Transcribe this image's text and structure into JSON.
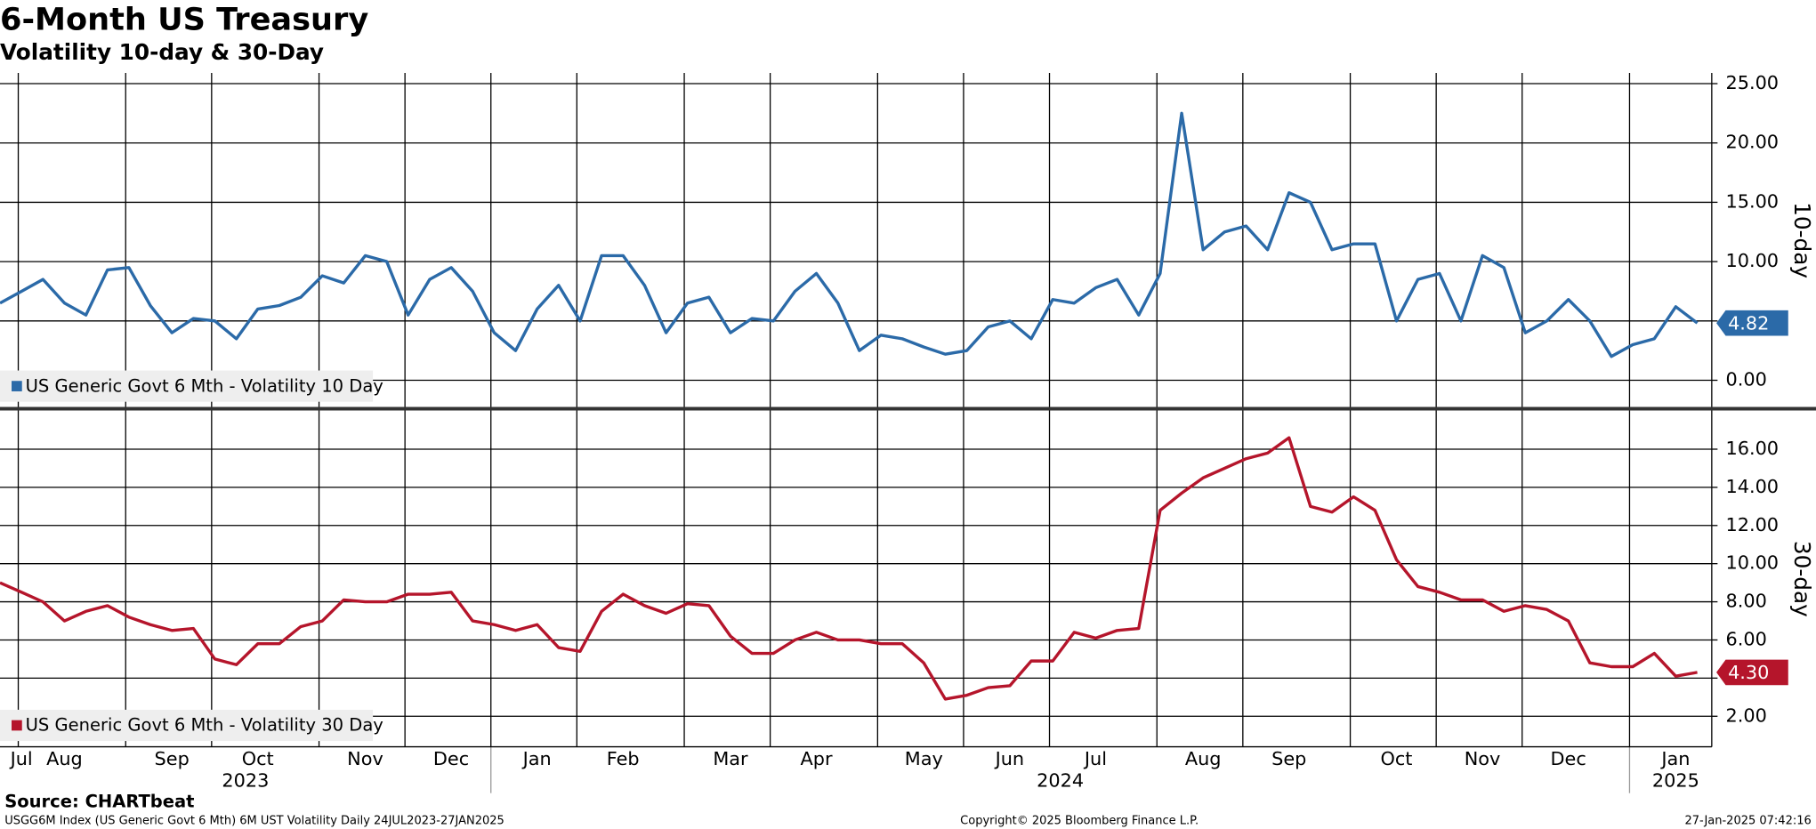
{
  "title": "6-Month US Treasury",
  "subtitle": "Volatility 10-day & 30-Day",
  "source": "Source: CHARTbeat",
  "footer_left": "USGG6M Index (US Generic Govt 6 Mth) 6M UST Volatility  Daily 24JUL2023-27JAN2025",
  "footer_center": "Copyright© 2025 Bloomberg Finance L.P.",
  "footer_right": "27-Jan-2025 07:42:16",
  "x_axis": {
    "categories": [
      null,
      "Jul",
      null,
      "Aug",
      null,
      null,
      null,
      null,
      "Sep",
      null,
      null,
      null,
      "Oct",
      null,
      null,
      null,
      null,
      "Nov",
      null,
      null,
      null,
      "Dec",
      null,
      null,
      null,
      "Jan",
      null,
      null,
      null,
      "Feb",
      null,
      null,
      null,
      null,
      "Mar",
      null,
      null,
      null,
      "Apr",
      null,
      null,
      null,
      null,
      "May",
      null,
      null,
      null,
      "Jun",
      null,
      null,
      null,
      "Jul",
      null,
      null,
      null,
      null,
      "Aug",
      null,
      null,
      null,
      "Sep",
      null,
      null,
      null,
      null,
      "Oct",
      null,
      null,
      null,
      "Nov",
      null,
      null,
      null,
      "Dec",
      null,
      null,
      null,
      null,
      "Jan",
      null
    ],
    "years": [
      "2023",
      "2024",
      "2025"
    ]
  },
  "chart_data": [
    {
      "type": "line",
      "ylabel": "10-day",
      "ylim": [
        -2.3,
        25.9
      ],
      "yticks": [
        {
          "value": 0,
          "label": "0.00"
        },
        {
          "value": 5,
          "label": "5.00"
        },
        {
          "value": 10,
          "label": "10.00"
        },
        {
          "value": 15,
          "label": "15.00"
        },
        {
          "value": 20,
          "label": "20.00"
        },
        {
          "value": 25,
          "label": "25.00"
        }
      ],
      "grid": true,
      "series": [
        {
          "name": "US Generic Govt 6 Mth - Volatility 10 Day",
          "color": "#2b6aa8",
          "last_value_label": "4.82",
          "values": [
            6.5,
            7.5,
            8.5,
            6.5,
            5.5,
            9.3,
            9.5,
            6.3,
            4.0,
            5.2,
            5.0,
            3.5,
            6.0,
            6.3,
            7.0,
            8.8,
            8.2,
            10.5,
            10.0,
            5.5,
            8.5,
            9.5,
            7.5,
            4.0,
            2.5,
            6.0,
            8.0,
            5.0,
            10.5,
            10.5,
            8.0,
            4.0,
            6.5,
            7.0,
            4.0,
            5.2,
            5.0,
            7.5,
            9.0,
            6.5,
            2.5,
            3.8,
            3.5,
            2.8,
            2.2,
            2.5,
            4.5,
            5.0,
            3.5,
            6.8,
            6.5,
            7.8,
            8.5,
            5.5,
            9.0,
            22.5,
            11.0,
            12.5,
            13.0,
            11.0,
            15.8,
            15.0,
            11.0,
            11.5,
            11.5,
            5.0,
            8.5,
            9.0,
            5.0,
            10.5,
            9.5,
            4.0,
            5.0,
            6.8,
            5.0,
            2.0,
            3.0,
            3.5,
            6.2,
            4.82
          ]
        }
      ]
    },
    {
      "type": "line",
      "ylabel": "30-day",
      "ylim": [
        0.4,
        18
      ],
      "yticks": [
        {
          "value": 2,
          "label": "2.00"
        },
        {
          "value": 4,
          "label": "4.00"
        },
        {
          "value": 6,
          "label": "6.00"
        },
        {
          "value": 8,
          "label": "8.00"
        },
        {
          "value": 10,
          "label": "10.00"
        },
        {
          "value": 12,
          "label": "12.00"
        },
        {
          "value": 14,
          "label": "14.00"
        },
        {
          "value": 16,
          "label": "16.00"
        }
      ],
      "grid": true,
      "series": [
        {
          "name": "US Generic Govt 6 Mth - Volatility 30 Day",
          "color": "#b5152b",
          "last_value_label": "4.30",
          "values": [
            9.0,
            8.5,
            8.0,
            7.0,
            7.5,
            7.8,
            7.2,
            6.8,
            6.5,
            6.6,
            5.0,
            4.7,
            5.8,
            5.8,
            6.7,
            7.0,
            8.1,
            8.0,
            8.0,
            8.4,
            8.4,
            8.5,
            7.0,
            6.8,
            6.5,
            6.8,
            5.6,
            5.4,
            7.5,
            8.4,
            7.8,
            7.4,
            7.9,
            7.8,
            6.2,
            5.3,
            5.3,
            6.0,
            6.4,
            6.0,
            6.0,
            5.8,
            5.8,
            4.8,
            2.9,
            3.1,
            3.5,
            3.6,
            4.9,
            4.9,
            6.4,
            6.1,
            6.5,
            6.6,
            12.8,
            13.7,
            14.5,
            15.0,
            15.5,
            15.8,
            16.6,
            13.0,
            12.7,
            13.5,
            12.8,
            10.2,
            8.8,
            8.5,
            8.1,
            8.1,
            7.5,
            7.8,
            7.6,
            7.0,
            4.8,
            4.6,
            4.6,
            5.3,
            4.1,
            4.3
          ]
        }
      ]
    }
  ]
}
